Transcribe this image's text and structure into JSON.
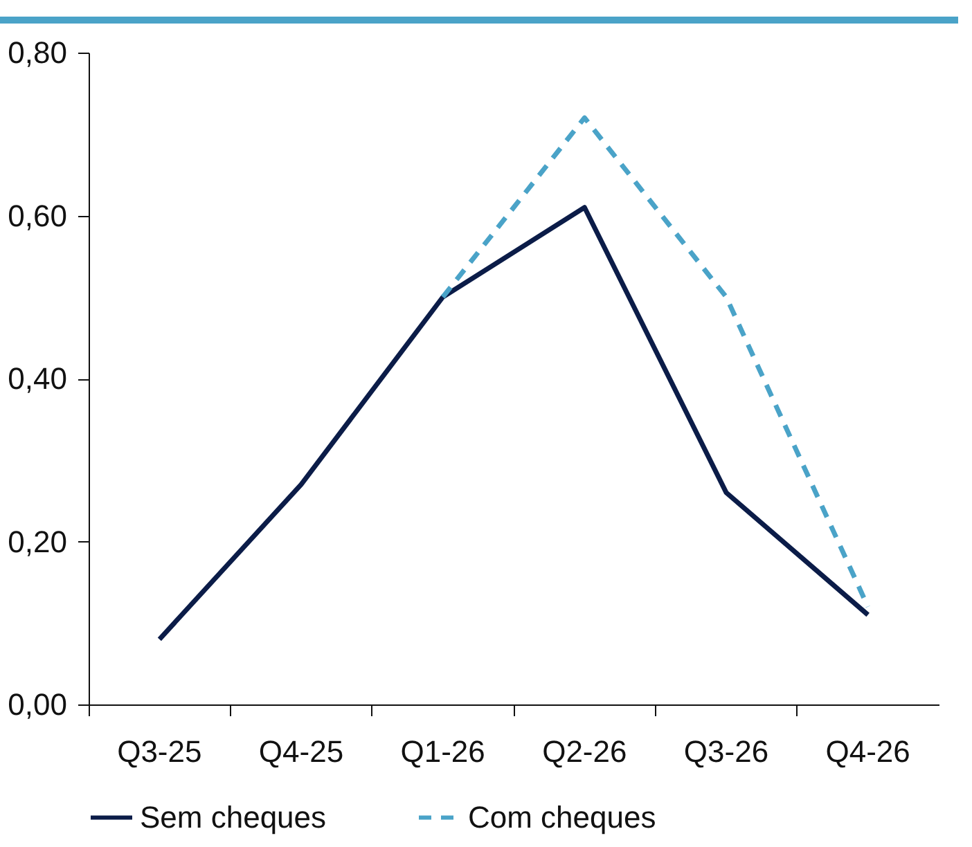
{
  "chart_data": {
    "type": "line",
    "categories": [
      "Q3-25",
      "Q4-25",
      "Q1-26",
      "Q2-26",
      "Q3-26",
      "Q4-26"
    ],
    "series": [
      {
        "name": "Sem cheques",
        "color": "#0b1c48",
        "line_style": "solid",
        "values": [
          0.08,
          0.27,
          0.5,
          0.61,
          0.26,
          0.11
        ]
      },
      {
        "name": "Com cheques",
        "color": "#4aa3c8",
        "line_style": "dashed",
        "values": [
          null,
          null,
          0.5,
          0.72,
          0.5,
          0.12
        ]
      }
    ],
    "ylim": [
      0,
      0.8
    ],
    "yticks": [
      {
        "value": 0,
        "label": "0,00"
      },
      {
        "value": 0.2,
        "label": "0,20"
      },
      {
        "value": 0.4,
        "label": "0,40"
      },
      {
        "value": 0.6,
        "label": "0,60"
      },
      {
        "value": 0.8,
        "label": "0,80"
      }
    ],
    "grid": false,
    "legend": "bottom",
    "marker": "none"
  }
}
